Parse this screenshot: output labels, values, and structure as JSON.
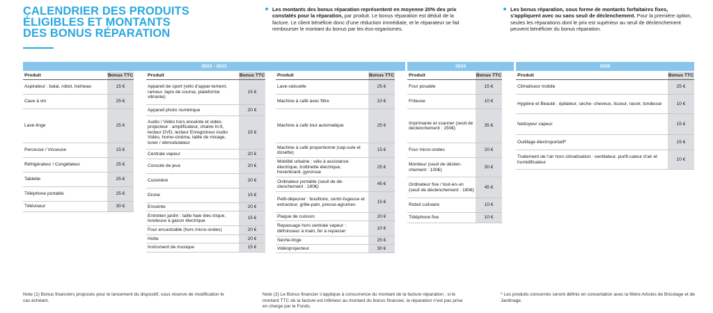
{
  "title": {
    "line1": "CALENDRIER DES PRODUITS",
    "line2": "ÉLIGIBLES ET MONTANTS",
    "line3": "DES BONUS RÉPARATION"
  },
  "intro": [
    {
      "bold": "Les montants des bonus réparation représentent en moyenne 20% des prix constatés pour la réparation,",
      "text": " par produit. Le bonus réparation est déduit de la facture. Le client bénéficie donc d’une réduction immédiate, et le réparateur se fait rembourser le montant du bonus par les éco-organismes."
    },
    {
      "bold": "Les bonus réparation, sous forme de montants forfaitaires fixes, s’appliquent avec ou sans seuil de déclenchement.",
      "text": " Pour la première option, seules les réparations dont le prix est supérieur au seuil de déclenchement peuvent bénéficier du bonus réparation."
    }
  ],
  "bands": [
    "2022 - 2023",
    "2024",
    "2025"
  ],
  "headers": {
    "product": "Produit",
    "bonus": "Bonus TTC"
  },
  "tables": [
    {
      "rows": [
        {
          "p": "Aspirateur : balai, robot, traîneau",
          "b": "15 €"
        },
        {
          "p": "Cave à vin",
          "b": "25 €"
        },
        {
          "p": "Lave-linge",
          "b": "25 €"
        },
        {
          "p": "Perceuse / Visseuse",
          "b": "15 €"
        },
        {
          "p": "Réfrigérateur / Congélateur",
          "b": "25 €"
        },
        {
          "p": "Tablette",
          "b": "25 €"
        },
        {
          "p": "Téléphone portable",
          "b": "25 €"
        },
        {
          "p": "Téléviseur",
          "b": "30 €"
        }
      ]
    },
    {
      "rows": [
        {
          "p": "Appareil de sport (vélo d’appar-tement, rameur, tapis de course, plateforme vibrante)",
          "b": "15 €"
        },
        {
          "p": "Appareil photo numérique",
          "b": "20 €"
        },
        {
          "p": "Audio / Vidéo hors enceinte et vidéo-projecteur : amplificateur, chaine hi-fi, lecteur DVD, lecteur Enregistreur Audio Vidéo, home-cinéma, table de mixage, tuner / démodulateur",
          "b": "15 €"
        },
        {
          "p": "Centrale vapeur",
          "b": "20 €"
        },
        {
          "p": "Console de jeux",
          "b": "20 €"
        },
        {
          "p": "Cuisinière",
          "b": "20 €"
        },
        {
          "p": "Drone",
          "b": "15 €"
        },
        {
          "p": "Enceinte",
          "b": "20 €"
        },
        {
          "p": "Entretien jardin : taille haie élec-trique, tondeuse à gazon électrique",
          "b": "15 €"
        },
        {
          "p": "Four encastrable (hors micro-ondes)",
          "b": "20 €"
        },
        {
          "p": "Hotte",
          "b": "20 €"
        },
        {
          "p": "Instrument de musique",
          "b": "15 €"
        }
      ]
    },
    {
      "rows": [
        {
          "p": "Lave-vaisselle",
          "b": "25 €"
        },
        {
          "p": "Machine à café avec filtre",
          "b": "10 €"
        },
        {
          "p": "Machine à café tout automatique",
          "b": "25 €"
        },
        {
          "p": "Machine à café proportionné (cap-sule et dosette)",
          "b": "15 €"
        },
        {
          "p": "Mobilité urbaine : vélo à assistance électrique, trottinette électrique, hoverboard, gyroroue",
          "b": "25 €"
        },
        {
          "p": "Ordinateur portable (seuil de dé-clenchement : 180€)",
          "b": "45 €"
        },
        {
          "p": "Petit-déjeuner : bouilloire, centri-fugeuse et extracteur, grille-pain, presse-agrumes",
          "b": "15 €"
        },
        {
          "p": "Plaque de cuisson",
          "b": "20 €"
        },
        {
          "p": "Repassage hors centrale vapeur : défroisseur à main, fer à repasser",
          "b": "10 €"
        },
        {
          "p": "Sèche-linge",
          "b": "25 €"
        },
        {
          "p": "Vidéoprojecteur",
          "b": "30 €"
        }
      ]
    },
    {
      "rows": [
        {
          "p": "Four posable",
          "b": "15 €"
        },
        {
          "p": "Friteuse",
          "b": "10 €"
        },
        {
          "p": "Imprimante et scanner (seuil de déclenchement : 150€)",
          "b": "35 €"
        },
        {
          "p": "Four micro-ondes",
          "b": "20 €"
        },
        {
          "p": "Moniteur (seuil de déclen-chement : 100€)",
          "b": "30 €"
        },
        {
          "p": "Ordinateur fixe / tout-en-un (seuil de déclenchement : 180€)",
          "b": "45 €"
        },
        {
          "p": "Robot culinaire",
          "b": "10 €"
        },
        {
          "p": "Téléphone fixe",
          "b": "10 €"
        }
      ]
    },
    {
      "rows": [
        {
          "p": "Climatiseur mobile",
          "b": "25 €"
        },
        {
          "p": "Hygiène et Beauté : épilateur, sèche- cheveux, lisseur, rasoir, tondeuse",
          "b": "10 €"
        },
        {
          "p": "Nettoyeur vapeur",
          "b": "15 €"
        },
        {
          "p": "Outillage électroportatif*",
          "b": "15 €"
        },
        {
          "p": "Traitement de l’air hors climatisation : ventilateur, purifi-cateur d’air et humidificateur",
          "b": "10 €"
        }
      ]
    }
  ],
  "notes": [
    "Note (1) Bonus financiers proposés pour le lancement du dispositif, sous réserve de modification le cas échéant.",
    "Note (2) Le Bonus financier s’applique à concurrence du montant de la facture réparation : si le montant TTC de la facture est inférieur au montant du bonus financier, la réparation n’est pas prise en charge par le Fonds.",
    "* Les produits concernés seront définis en concertation avec la filière Articles de Bricolage et de Jardinage."
  ]
}
